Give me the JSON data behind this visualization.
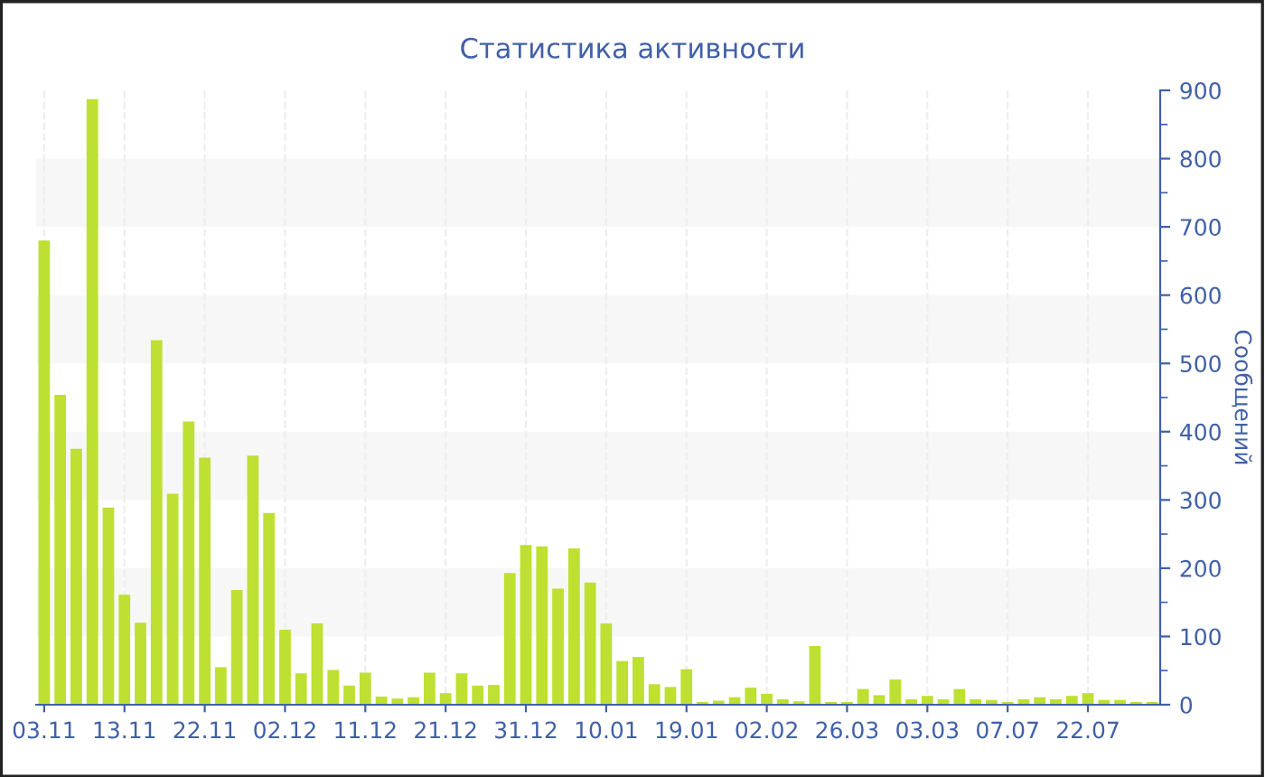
{
  "chart_data": {
    "type": "bar",
    "title": "Статистика активности",
    "ylabel": "Сообщений",
    "categories": [
      "03.11",
      null,
      null,
      null,
      null,
      "13.11",
      null,
      null,
      null,
      null,
      "22.11",
      null,
      null,
      null,
      null,
      "02.12",
      null,
      null,
      null,
      null,
      "11.12",
      null,
      null,
      null,
      null,
      "21.12",
      null,
      null,
      null,
      null,
      "31.12",
      null,
      null,
      null,
      null,
      "10.01",
      null,
      null,
      null,
      null,
      "19.01",
      null,
      null,
      null,
      null,
      "02.02",
      null,
      null,
      null,
      null,
      "26.03",
      null,
      null,
      null,
      null,
      "03.03",
      null,
      null,
      null,
      null,
      "07.07",
      null,
      null,
      null,
      null,
      "22.07",
      null,
      null,
      null,
      null
    ],
    "values": [
      680,
      454,
      375,
      887,
      289,
      161,
      120,
      534,
      309,
      415,
      362,
      55,
      168,
      365,
      281,
      110,
      46,
      119,
      51,
      28,
      47,
      12,
      9,
      11,
      47,
      17,
      46,
      28,
      29,
      193,
      234,
      232,
      170,
      229,
      179,
      119,
      64,
      70,
      30,
      26,
      52,
      4,
      6,
      11,
      25,
      16,
      8,
      5,
      86,
      4,
      4,
      23,
      14,
      37,
      8,
      13,
      8,
      23,
      8,
      7,
      4,
      8,
      11,
      8,
      13,
      17,
      7,
      7,
      4,
      4
    ],
    "color": "#bde032",
    "ylim": [
      0,
      900
    ],
    "yticks": [
      0,
      100,
      200,
      300,
      400,
      500,
      600,
      700,
      800,
      900
    ],
    "bands": [
      {
        "axis": "y",
        "from": 100,
        "to": 200,
        "color": "#f7f7f7"
      },
      {
        "axis": "y",
        "from": 300,
        "to": 400,
        "color": "#f7f7f7"
      },
      {
        "axis": "y",
        "from": 500,
        "to": 600,
        "color": "#f7f7f7"
      },
      {
        "axis": "y",
        "from": 700,
        "to": 800,
        "color": "#f7f7f7"
      }
    ],
    "grid": "x"
  }
}
